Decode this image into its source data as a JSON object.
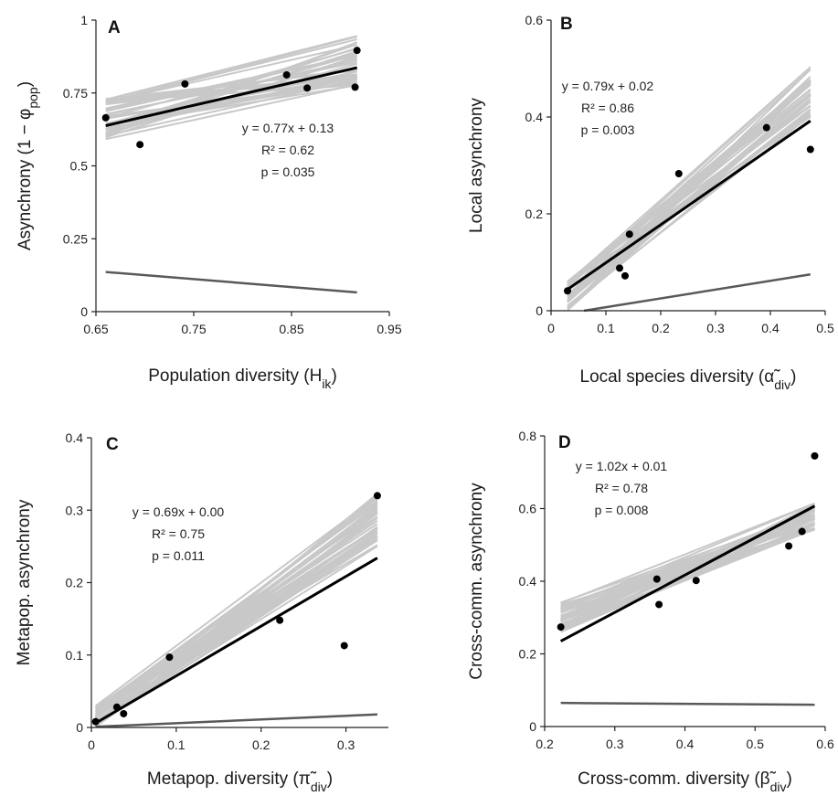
{
  "figure": {
    "panels": [
      {
        "label": "A",
        "type": "scatter",
        "xlabel": "Population diversity (H",
        "xlabel_sub": "ik",
        "xlabel_tail": ")",
        "ylabel": "Asynchrony (1 − φ",
        "ylabel_sub": "pop",
        "ylabel_tail": ")",
        "xlim": [
          0.65,
          0.95
        ],
        "ylim": [
          0,
          1
        ],
        "xticks": [
          "0.65",
          "0.75",
          "0.85",
          "0.95"
        ],
        "xtick_values": [
          0.65,
          0.75,
          0.85,
          0.95
        ],
        "yticks": [
          "0",
          "0.25",
          "0.5",
          "0.75",
          "1"
        ],
        "ytick_values": [
          0,
          0.25,
          0.5,
          0.75,
          1
        ],
        "equation": [
          "y = 0.77x + 0.13",
          "R² = 0.62",
          "p = 0.035"
        ],
        "points": [
          [
            0.66,
            0.665
          ],
          [
            0.695,
            0.573
          ],
          [
            0.741,
            0.781
          ],
          [
            0.845,
            0.812
          ],
          [
            0.866,
            0.767
          ],
          [
            0.915,
            0.77
          ],
          [
            0.917,
            0.896
          ]
        ],
        "fit_line": [
          [
            0.66,
            0.638
          ],
          [
            0.917,
            0.837
          ]
        ],
        "null_line": [
          [
            0.66,
            0.136
          ],
          [
            0.917,
            0.066
          ]
        ],
        "bootstrap_lines": {
          "x": [
            0.66,
            0.917
          ],
          "start_range": [
            0.59,
            0.73
          ],
          "end_range": [
            0.77,
            0.955
          ],
          "count": 40
        }
      },
      {
        "label": "B",
        "type": "scatter",
        "xlabel": "Local species diversity (α̃",
        "xlabel_sub": "div",
        "xlabel_tail": ")",
        "ylabel": "Local asynchrony",
        "ylabel_sub": "",
        "ylabel_tail": "",
        "xlim": [
          0,
          0.5
        ],
        "ylim": [
          0,
          0.6
        ],
        "xticks": [
          "0",
          "0.1",
          "0.2",
          "0.3",
          "0.4",
          "0.5"
        ],
        "xtick_values": [
          0,
          0.1,
          0.2,
          0.3,
          0.4,
          0.5
        ],
        "yticks": [
          "0",
          "0.2",
          "0.4",
          "0.6"
        ],
        "ytick_values": [
          0,
          0.2,
          0.4,
          0.6
        ],
        "equation": [
          "y = 0.79x + 0.02",
          "R² = 0.86",
          "p = 0.003"
        ],
        "points": [
          [
            0.03,
            0.041
          ],
          [
            0.125,
            0.088
          ],
          [
            0.135,
            0.072
          ],
          [
            0.143,
            0.158
          ],
          [
            0.233,
            0.283
          ],
          [
            0.393,
            0.378
          ],
          [
            0.473,
            0.333
          ]
        ],
        "fit_line": [
          [
            0.03,
            0.044
          ],
          [
            0.473,
            0.392
          ]
        ],
        "null_line": [
          [
            0.06,
            0.0
          ],
          [
            0.473,
            0.075
          ]
        ],
        "bootstrap_lines": {
          "x": [
            0.03,
            0.473
          ],
          "start_range": [
            0.0,
            0.065
          ],
          "end_range": [
            0.4,
            0.505
          ],
          "count": 40
        }
      },
      {
        "label": "C",
        "type": "scatter",
        "xlabel": "Metapop. diversity (π̃",
        "xlabel_sub": "div",
        "xlabel_tail": ")",
        "ylabel": "Metapop. asynchrony",
        "ylabel_sub": "",
        "ylabel_tail": "",
        "xlim": [
          0,
          0.35
        ],
        "ylim": [
          0,
          0.4
        ],
        "xticks": [
          "0",
          "0.1",
          "0.2",
          "0.3"
        ],
        "xtick_values": [
          0,
          0.1,
          0.2,
          0.3
        ],
        "yticks": [
          "0",
          "0.1",
          "0.2",
          "0.3",
          "0.4"
        ],
        "ytick_values": [
          0,
          0.1,
          0.2,
          0.3,
          0.4
        ],
        "equation": [
          "y = 0.69x + 0.00",
          "R² = 0.75",
          "p = 0.011"
        ],
        "points": [
          [
            0.005,
            0.008
          ],
          [
            0.03,
            0.028
          ],
          [
            0.038,
            0.019
          ],
          [
            0.092,
            0.097
          ],
          [
            0.222,
            0.148
          ],
          [
            0.298,
            0.113
          ],
          [
            0.337,
            0.32
          ]
        ],
        "fit_line": [
          [
            0.005,
            0.006
          ],
          [
            0.337,
            0.234
          ]
        ],
        "null_line": [
          [
            0.005,
            0.001
          ],
          [
            0.337,
            0.018
          ]
        ],
        "bootstrap_lines": {
          "x": [
            0.005,
            0.337
          ],
          "start_range": [
            0.0,
            0.03
          ],
          "end_range": [
            0.25,
            0.325
          ],
          "count": 40
        }
      },
      {
        "label": "D",
        "type": "scatter",
        "xlabel": "Cross-comm. diversity (β̃",
        "xlabel_sub": "div",
        "xlabel_tail": ")",
        "ylabel": "Cross-comm. asynchrony",
        "ylabel_sub": "",
        "ylabel_tail": "",
        "xlim": [
          0.2,
          0.6
        ],
        "ylim": [
          0,
          0.8
        ],
        "xticks": [
          "0.2",
          "0.3",
          "0.4",
          "0.5",
          "0.6"
        ],
        "xtick_values": [
          0.2,
          0.3,
          0.4,
          0.5,
          0.6
        ],
        "yticks": [
          "0",
          "0.2",
          "0.4",
          "0.6",
          "0.8"
        ],
        "ytick_values": [
          0,
          0.2,
          0.4,
          0.6,
          0.8
        ],
        "equation": [
          "y = 1.02x + 0.01",
          "R² = 0.78",
          "p = 0.008"
        ],
        "points": [
          [
            0.223,
            0.274
          ],
          [
            0.36,
            0.406
          ],
          [
            0.363,
            0.336
          ],
          [
            0.416,
            0.402
          ],
          [
            0.548,
            0.497
          ],
          [
            0.567,
            0.537
          ],
          [
            0.585,
            0.745
          ]
        ],
        "fit_line": [
          [
            0.223,
            0.235
          ],
          [
            0.585,
            0.607
          ]
        ],
        "null_line": [
          [
            0.223,
            0.065
          ],
          [
            0.585,
            0.06
          ]
        ],
        "bootstrap_lines": {
          "x": [
            0.223,
            0.585
          ],
          "start_range": [
            0.26,
            0.345
          ],
          "end_range": [
            0.54,
            0.615
          ],
          "count": 40
        }
      }
    ]
  },
  "colors": {
    "points": "#000000",
    "fit_line": "#000000",
    "null_line": "#595959",
    "bootstrap_lines": "#c8c8c8",
    "axes": "#222222"
  },
  "chart_data": [
    {
      "type": "scatter",
      "title": "A",
      "xlabel": "Population diversity (Hik)",
      "ylabel": "Asynchrony (1 − φpop)",
      "xlim": [
        0.65,
        0.95
      ],
      "ylim": [
        0,
        1
      ],
      "series": [
        {
          "name": "",
          "x": [
            0.66,
            0.695,
            0.741,
            0.845,
            0.866,
            0.915,
            0.917
          ],
          "y": [
            0.665,
            0.573,
            0.781,
            0.812,
            0.767,
            0.77,
            0.896
          ]
        }
      ],
      "annotations": [
        "y = 0.77x + 0.13",
        "R² = 0.62",
        "p = 0.035"
      ],
      "grid": false
    },
    {
      "type": "scatter",
      "title": "B",
      "xlabel": "Local species diversity (α̃div)",
      "ylabel": "Local asynchrony",
      "xlim": [
        0,
        0.5
      ],
      "ylim": [
        0,
        0.6
      ],
      "series": [
        {
          "name": "",
          "x": [
            0.03,
            0.125,
            0.135,
            0.143,
            0.233,
            0.393,
            0.473
          ],
          "y": [
            0.041,
            0.088,
            0.072,
            0.158,
            0.283,
            0.378,
            0.333
          ]
        }
      ],
      "annotations": [
        "y = 0.79x + 0.02",
        "R² = 0.86",
        "p = 0.003"
      ],
      "grid": false
    },
    {
      "type": "scatter",
      "title": "C",
      "xlabel": "Metapop. diversity (π̃div)",
      "ylabel": "Metapop. asynchrony",
      "xlim": [
        0,
        0.35
      ],
      "ylim": [
        0,
        0.4
      ],
      "series": [
        {
          "name": "",
          "x": [
            0.005,
            0.03,
            0.038,
            0.092,
            0.222,
            0.298,
            0.337
          ],
          "y": [
            0.008,
            0.028,
            0.019,
            0.097,
            0.148,
            0.113,
            0.32
          ]
        }
      ],
      "annotations": [
        "y = 0.69x + 0.00",
        "R² = 0.75",
        "p = 0.011"
      ],
      "grid": false
    },
    {
      "type": "scatter",
      "title": "D",
      "xlabel": "Cross-comm. diversity (β̃div)",
      "ylabel": "Cross-comm. asynchrony",
      "xlim": [
        0.2,
        0.6
      ],
      "ylim": [
        0,
        0.8
      ],
      "series": [
        {
          "name": "",
          "x": [
            0.223,
            0.36,
            0.363,
            0.416,
            0.548,
            0.567,
            0.585
          ],
          "y": [
            0.274,
            0.406,
            0.336,
            0.402,
            0.497,
            0.537,
            0.745
          ]
        }
      ],
      "annotations": [
        "y = 1.02x + 0.01",
        "R² = 0.78",
        "p = 0.008"
      ],
      "grid": false
    }
  ]
}
